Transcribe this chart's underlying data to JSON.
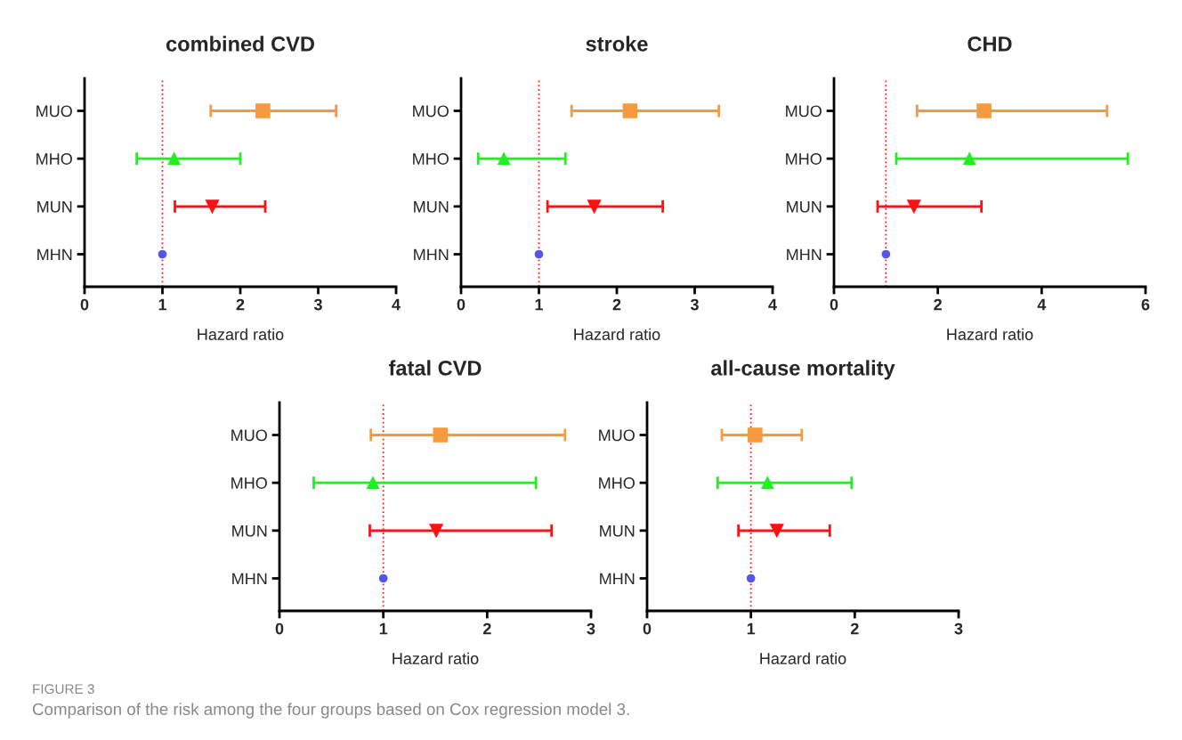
{
  "chart_data": [
    {
      "type": "scatter",
      "orientation": "horizontal",
      "title": "combined CVD",
      "xlabel": "Hazard ratio",
      "categories": [
        "MUO",
        "MHO",
        "MUN",
        "MHN"
      ],
      "values": [
        2.29,
        1.15,
        1.64,
        1.0
      ],
      "errors": [
        [
          1.62,
          3.23
        ],
        [
          0.67,
          2.0
        ],
        [
          1.16,
          2.32
        ],
        null
      ],
      "colors": [
        "#f79a3e",
        "#22ee22",
        "#ff1111",
        "#5555ee"
      ],
      "marker": [
        "square",
        "triangle",
        "triangle_down",
        "circle"
      ],
      "xlim": [
        0,
        4
      ],
      "xticks": [
        0,
        1,
        2,
        3,
        4
      ],
      "ref_lines": [
        {
          "axis": "x",
          "value": 1,
          "color": "#ff2222",
          "line_style": "dotted"
        }
      ],
      "grid": false,
      "legend": false
    },
    {
      "type": "scatter",
      "orientation": "horizontal",
      "title": "stroke",
      "xlabel": "Hazard ratio",
      "categories": [
        "MUO",
        "MHO",
        "MUN",
        "MHN"
      ],
      "values": [
        2.17,
        0.55,
        1.71,
        1.0
      ],
      "errors": [
        [
          1.42,
          3.31
        ],
        [
          0.22,
          1.34
        ],
        [
          1.11,
          2.59
        ],
        null
      ],
      "colors": [
        "#f79a3e",
        "#22ee22",
        "#ff1111",
        "#5555ee"
      ],
      "marker": [
        "square",
        "triangle",
        "triangle_down",
        "circle"
      ],
      "xlim": [
        0,
        4
      ],
      "xticks": [
        0,
        1,
        2,
        3,
        4
      ],
      "ref_lines": [
        {
          "axis": "x",
          "value": 1,
          "color": "#ff2222",
          "line_style": "dotted"
        }
      ],
      "grid": false,
      "legend": false
    },
    {
      "type": "scatter",
      "orientation": "horizontal",
      "title": "CHD",
      "xlabel": "Hazard ratio",
      "categories": [
        "MUO",
        "MHO",
        "MUN",
        "MHN"
      ],
      "values": [
        2.89,
        2.61,
        1.54,
        1.0
      ],
      "errors": [
        [
          1.6,
          5.26
        ],
        [
          1.2,
          5.66
        ],
        [
          0.84,
          2.84
        ],
        null
      ],
      "colors": [
        "#f79a3e",
        "#22ee22",
        "#ff1111",
        "#5555ee"
      ],
      "marker": [
        "square",
        "triangle",
        "triangle_down",
        "circle"
      ],
      "xlim": [
        0,
        6
      ],
      "xticks": [
        0,
        2,
        4,
        6
      ],
      "ref_lines": [
        {
          "axis": "x",
          "value": 1,
          "color": "#ff2222",
          "line_style": "dotted"
        }
      ],
      "grid": false,
      "legend": false
    },
    {
      "type": "scatter",
      "orientation": "horizontal",
      "title": "fatal CVD",
      "xlabel": "Hazard ratio",
      "categories": [
        "MUO",
        "MHO",
        "MUN",
        "MHN"
      ],
      "values": [
        1.55,
        0.9,
        1.51,
        1.0
      ],
      "errors": [
        [
          0.88,
          2.75
        ],
        [
          0.33,
          2.47
        ],
        [
          0.87,
          2.62
        ],
        null
      ],
      "colors": [
        "#f79a3e",
        "#22ee22",
        "#ff1111",
        "#5555ee"
      ],
      "marker": [
        "square",
        "triangle",
        "triangle_down",
        "circle"
      ],
      "xlim": [
        0,
        3
      ],
      "xticks": [
        0,
        1,
        2,
        3
      ],
      "ref_lines": [
        {
          "axis": "x",
          "value": 1,
          "color": "#ff2222",
          "line_style": "dotted"
        }
      ],
      "grid": false,
      "legend": false
    },
    {
      "type": "scatter",
      "orientation": "horizontal",
      "title": "all-cause mortality",
      "xlabel": "Hazard ratio",
      "categories": [
        "MUO",
        "MHO",
        "MUN",
        "MHN"
      ],
      "values": [
        1.04,
        1.16,
        1.25,
        1.0
      ],
      "errors": [
        [
          0.72,
          1.49
        ],
        [
          0.68,
          1.97
        ],
        [
          0.88,
          1.76
        ],
        null
      ],
      "colors": [
        "#f79a3e",
        "#22ee22",
        "#ff1111",
        "#5555ee"
      ],
      "marker": [
        "square",
        "triangle",
        "triangle_down",
        "circle"
      ],
      "xlim": [
        0,
        3
      ],
      "xticks": [
        0,
        1,
        2,
        3
      ],
      "ref_lines": [
        {
          "axis": "x",
          "value": 1,
          "color": "#ff2222",
          "line_style": "dotted"
        }
      ],
      "grid": false,
      "legend": false,
      "annotations": [
        "FIGURE 3",
        "Comparison of the risk among the four groups based on Cox regression model 3."
      ]
    }
  ]
}
